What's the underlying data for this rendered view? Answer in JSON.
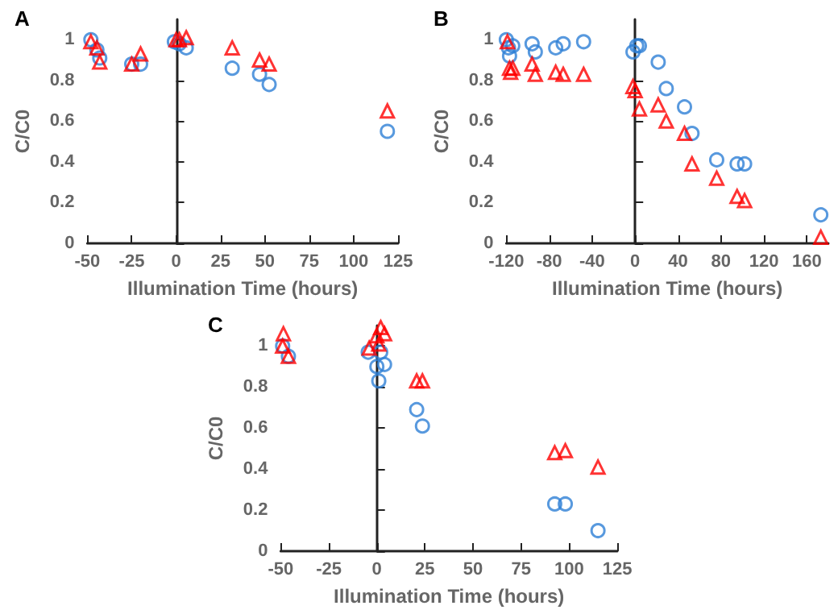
{
  "chart_data": [
    {
      "type": "scatter",
      "title": "A",
      "xlabel": "Illumination Time (hours)",
      "ylabel": "C/C0",
      "xlim": [
        -50,
        125
      ],
      "xticks": [
        -50,
        -25,
        0,
        25,
        50,
        75,
        100,
        125
      ],
      "ylim": [
        0,
        1.1
      ],
      "yticks": [
        0,
        0.2,
        0.4,
        0.6,
        0.8,
        1
      ],
      "series": [
        {
          "color": "#2e7fd6",
          "marker": "circle",
          "x": [
            -48,
            -44.6,
            -43,
            -25,
            -20,
            -1,
            1.8,
            5.7,
            31.6,
            47,
            52.4,
            119
          ],
          "values": [
            1.0,
            0.95,
            0.91,
            0.88,
            0.88,
            0.99,
            0.98,
            0.96,
            0.86,
            0.83,
            0.78,
            0.55
          ]
        },
        {
          "color": "#ff0000",
          "marker": "triangle",
          "x": [
            -48,
            -44.6,
            -43,
            -25,
            -20,
            0,
            1.8,
            5.7,
            31.6,
            47,
            52.4,
            119
          ],
          "values": [
            0.99,
            0.96,
            0.89,
            0.88,
            0.93,
            1.0,
            1.0,
            1.01,
            0.96,
            0.9,
            0.88,
            0.65
          ]
        }
      ]
    },
    {
      "type": "scatter",
      "title": "B",
      "xlabel": "Illumination Time (hours)",
      "ylabel": "C/C0",
      "xlim": [
        -120,
        180
      ],
      "xticks": [
        -120,
        -80,
        -40,
        0,
        40,
        80,
        120,
        160
      ],
      "ylim": [
        0,
        1.1
      ],
      "yticks": [
        0,
        0.2,
        0.4,
        0.6,
        0.8,
        1
      ],
      "series": [
        {
          "color": "#2e7fd6",
          "marker": "circle",
          "x": [
            -120,
            -118,
            -117,
            -114,
            -96,
            -93,
            -74,
            -67,
            -48,
            -2,
            1.5,
            4,
            21.5,
            29,
            46,
            53,
            76,
            95,
            102,
            173
          ],
          "values": [
            1.0,
            0.96,
            0.92,
            0.97,
            0.98,
            0.94,
            0.96,
            0.98,
            0.99,
            0.94,
            0.97,
            0.97,
            0.89,
            0.76,
            0.67,
            0.54,
            0.41,
            0.39,
            0.39,
            0.14
          ]
        },
        {
          "color": "#ff0000",
          "marker": "triangle",
          "x": [
            -119,
            -117,
            -116,
            -114,
            -96,
            -93,
            -74,
            -67,
            -48,
            -2,
            0,
            4,
            21.5,
            29,
            46,
            53,
            76,
            95,
            102,
            173
          ],
          "values": [
            0.99,
            0.86,
            0.84,
            0.86,
            0.88,
            0.83,
            0.84,
            0.83,
            0.83,
            0.77,
            0.75,
            0.66,
            0.68,
            0.6,
            0.54,
            0.39,
            0.32,
            0.23,
            0.21,
            0.03
          ]
        }
      ]
    },
    {
      "type": "scatter",
      "title": "C",
      "xlabel": "Illumination Time (hours)",
      "ylabel": "C/C0",
      "xlim": [
        -50,
        125
      ],
      "xticks": [
        -50,
        -25,
        0,
        25,
        50,
        75,
        100,
        125
      ],
      "ylim": [
        0,
        1.1
      ],
      "yticks": [
        0,
        0.2,
        0.4,
        0.6,
        0.8,
        1
      ],
      "series": [
        {
          "color": "#2e7fd6",
          "marker": "circle",
          "x": [
            -49,
            -46,
            -4.5,
            0,
            1,
            2,
            4,
            20.7,
            23.7,
            92.5,
            98,
            115
          ],
          "values": [
            1.0,
            0.95,
            0.97,
            0.9,
            0.83,
            0.97,
            0.91,
            0.69,
            0.61,
            0.23,
            0.23,
            0.1
          ]
        },
        {
          "color": "#ff0000",
          "marker": "triangle",
          "x": [
            -48.6,
            -49,
            -46,
            -4,
            0,
            1,
            2,
            4,
            20.7,
            23.7,
            92.5,
            98,
            115
          ],
          "values": [
            1.06,
            1.0,
            0.95,
            0.99,
            1.05,
            1.01,
            1.09,
            1.06,
            0.83,
            0.83,
            0.48,
            0.49,
            0.41
          ]
        }
      ]
    }
  ]
}
